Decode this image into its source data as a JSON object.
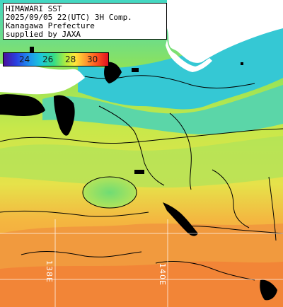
{
  "info_box": {
    "lines": [
      "HIMAWARI SST",
      "2025/09/05 22(UTC) 3H Comp.",
      "Kanagawa Prefecture",
      "supplied by JAXA"
    ]
  },
  "colorbar": {
    "ticks": [
      "24",
      "26",
      "28",
      "30"
    ],
    "colors": [
      "#4b0f9a",
      "#2a3fe0",
      "#1cc9d8",
      "#33dd88",
      "#ffe83a",
      "#ffa030",
      "#e01020"
    ]
  },
  "grid_labels": {
    "lon_left": "138E",
    "lon_right": "140E"
  },
  "colors": {
    "land": "#ffffff",
    "cloud": "#000000",
    "grid": "#ffffff",
    "contour": "#000000"
  }
}
